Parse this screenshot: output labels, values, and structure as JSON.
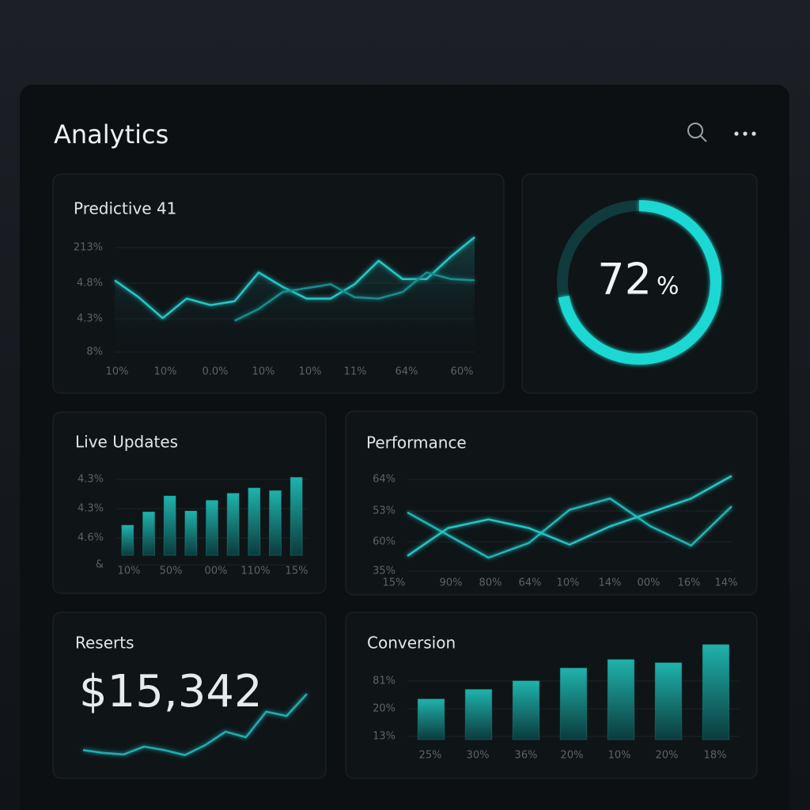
{
  "header": {
    "title": "Analytics"
  },
  "panels": [
    {
      "type": "line",
      "title": "Predictive 41",
      "ylim": [
        0,
        100
      ],
      "y_labels": [
        "213%",
        "4.8%",
        "4.3%",
        "8%"
      ],
      "x_labels": [
        "10%",
        "10%",
        "0.0%",
        "10%",
        "10%",
        "11%",
        "64%",
        "60%"
      ],
      "series": [
        {
          "color": "#22c9c9",
          "values": [
            61,
            48,
            32,
            47,
            42,
            45,
            67,
            56,
            47,
            47,
            58,
            76,
            62,
            62,
            79,
            94
          ]
        },
        {
          "color": "#158e90",
          "values": [
            null,
            null,
            null,
            null,
            null,
            30,
            39,
            52,
            55,
            58,
            48,
            47,
            52,
            67,
            62,
            61
          ]
        }
      ]
    },
    {
      "type": "donut",
      "value": 72,
      "unit": "%",
      "ylim": [
        0,
        100
      ],
      "color": "#1ed8d2"
    },
    {
      "type": "bar",
      "title": "Live Updates",
      "ylim": [
        0,
        100
      ],
      "y_labels": [
        "4.3%",
        "4.3%",
        "4.6%",
        "&"
      ],
      "x_labels": [
        "10%",
        "50%",
        "00%",
        "110%",
        "15%"
      ],
      "color": "#1a9e98",
      "values": [
        34,
        49,
        67,
        50,
        62,
        70,
        76,
        73,
        88
      ]
    },
    {
      "type": "line",
      "title": "Performance",
      "ylim": [
        0,
        100
      ],
      "y_labels": [
        "64%",
        "53%",
        "60%",
        "35%"
      ],
      "x_labels": [
        "15%",
        "90%",
        "80%",
        "64%",
        "10%",
        "14%",
        "00%",
        "16%",
        "14%"
      ],
      "series": [
        {
          "color": "#1fb8b8",
          "values": [
            52,
            26,
            0,
            17,
            55,
            68,
            36,
            14,
            59
          ]
        },
        {
          "color": "#1fc8c8",
          "values": [
            2,
            34,
            44,
            34,
            15,
            36,
            52,
            68,
            94
          ]
        }
      ]
    },
    {
      "type": "spark",
      "title": "Reserts",
      "value": "$15,342",
      "ylim": [
        0,
        100
      ],
      "series": [
        {
          "color": "#1fb0b4",
          "values": [
            13,
            9,
            7,
            18,
            13,
            6,
            20,
            39,
            31,
            67,
            61,
            92
          ]
        }
      ]
    },
    {
      "type": "bar",
      "title": "Conversion",
      "ylim": [
        0,
        100
      ],
      "y_labels": [
        "81%",
        "20%",
        "13%"
      ],
      "x_labels": [
        "25%",
        "30%",
        "36%",
        "20%",
        "10%",
        "20%",
        "18%"
      ],
      "color": "#178d8a",
      "values": [
        38,
        47,
        55,
        67,
        75,
        72,
        89
      ]
    }
  ]
}
